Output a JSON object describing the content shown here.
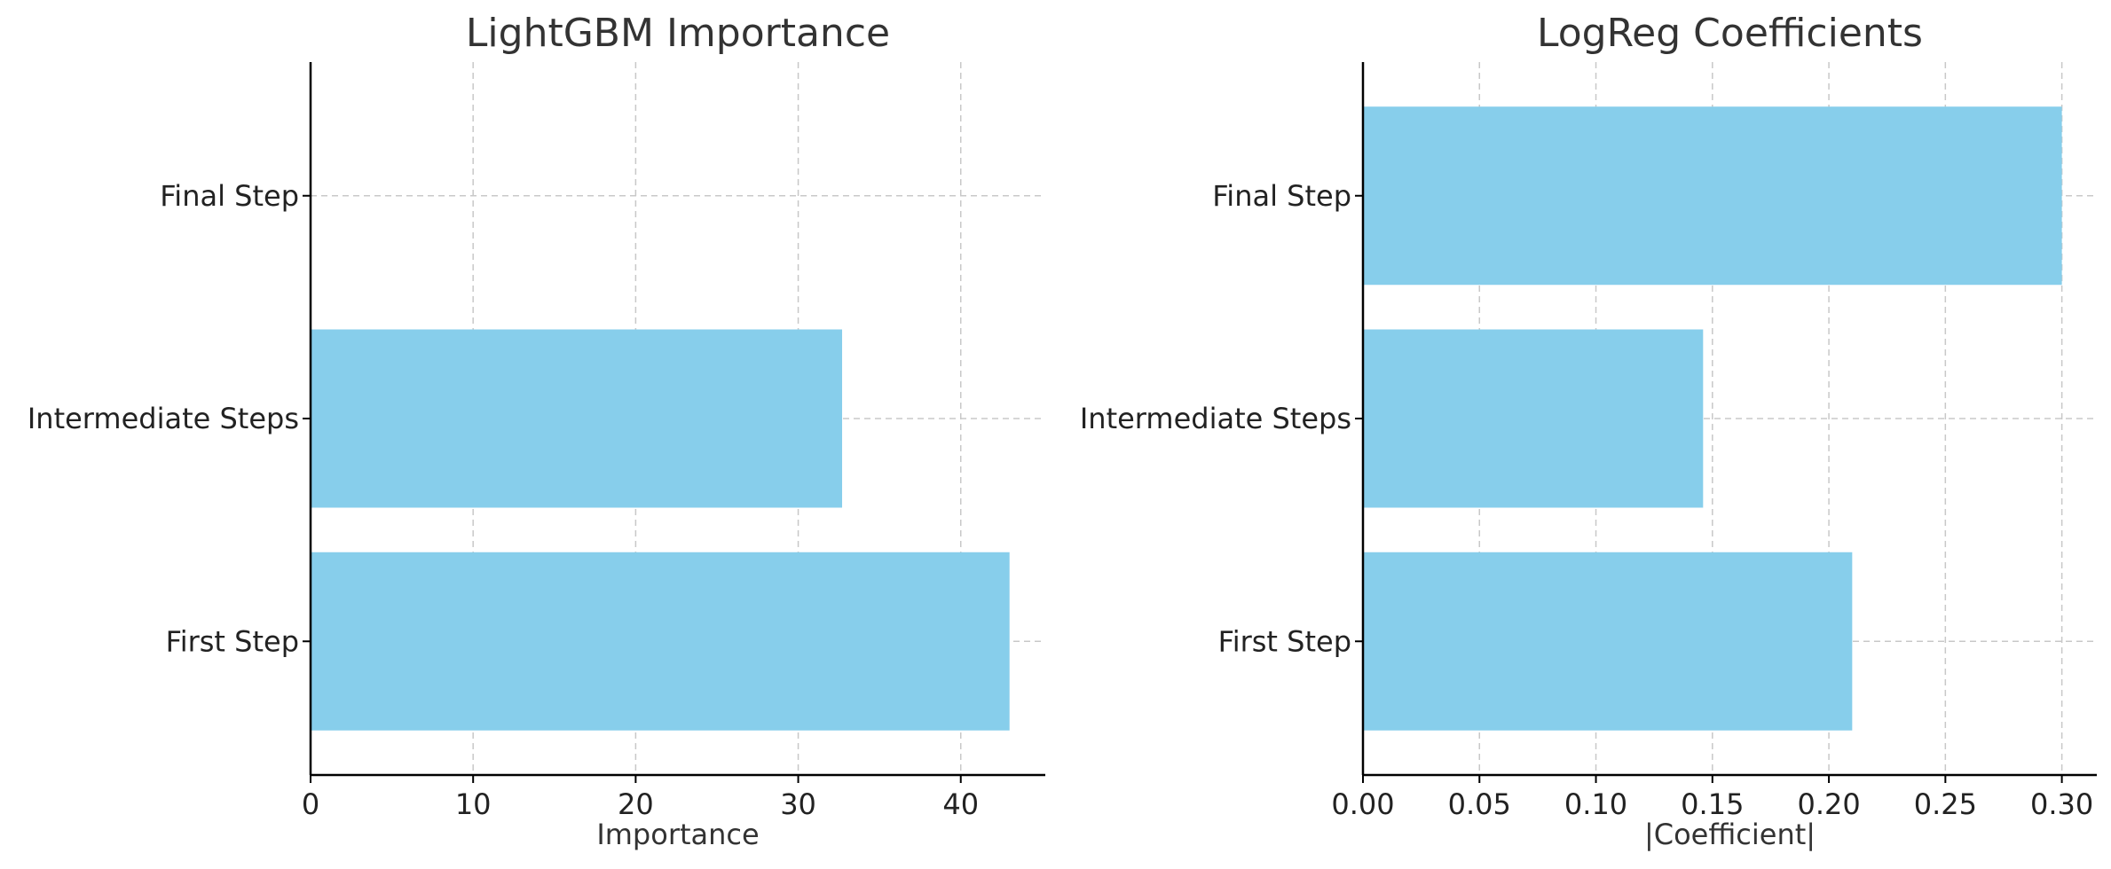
{
  "chart_data": [
    {
      "type": "bar",
      "orientation": "horizontal",
      "title": "LightGBM Importance",
      "xlabel": "Importance",
      "ylabel": "",
      "categories": [
        "First Step",
        "Intermediate Steps",
        "Final Step"
      ],
      "values": [
        43,
        32.7,
        0
      ],
      "xlim": [
        0,
        45.2
      ],
      "xticks": [
        0,
        10,
        20,
        30,
        40
      ],
      "xtick_labels": [
        "0",
        "10",
        "20",
        "30",
        "40"
      ],
      "grid": true,
      "bar_color": "#87CEEB"
    },
    {
      "type": "bar",
      "orientation": "horizontal",
      "title": "LogReg Coefficients",
      "xlabel": "|Coefficient|",
      "ylabel": "",
      "categories": [
        "First Step",
        "Intermediate Steps",
        "Final Step"
      ],
      "values": [
        0.21,
        0.146,
        0.3
      ],
      "xlim": [
        0,
        0.315
      ],
      "xticks": [
        0.0,
        0.05,
        0.1,
        0.15,
        0.2,
        0.25,
        0.3
      ],
      "xtick_labels": [
        "0.00",
        "0.05",
        "0.10",
        "0.15",
        "0.20",
        "0.25",
        "0.30"
      ],
      "grid": true,
      "bar_color": "#87CEEB"
    }
  ]
}
